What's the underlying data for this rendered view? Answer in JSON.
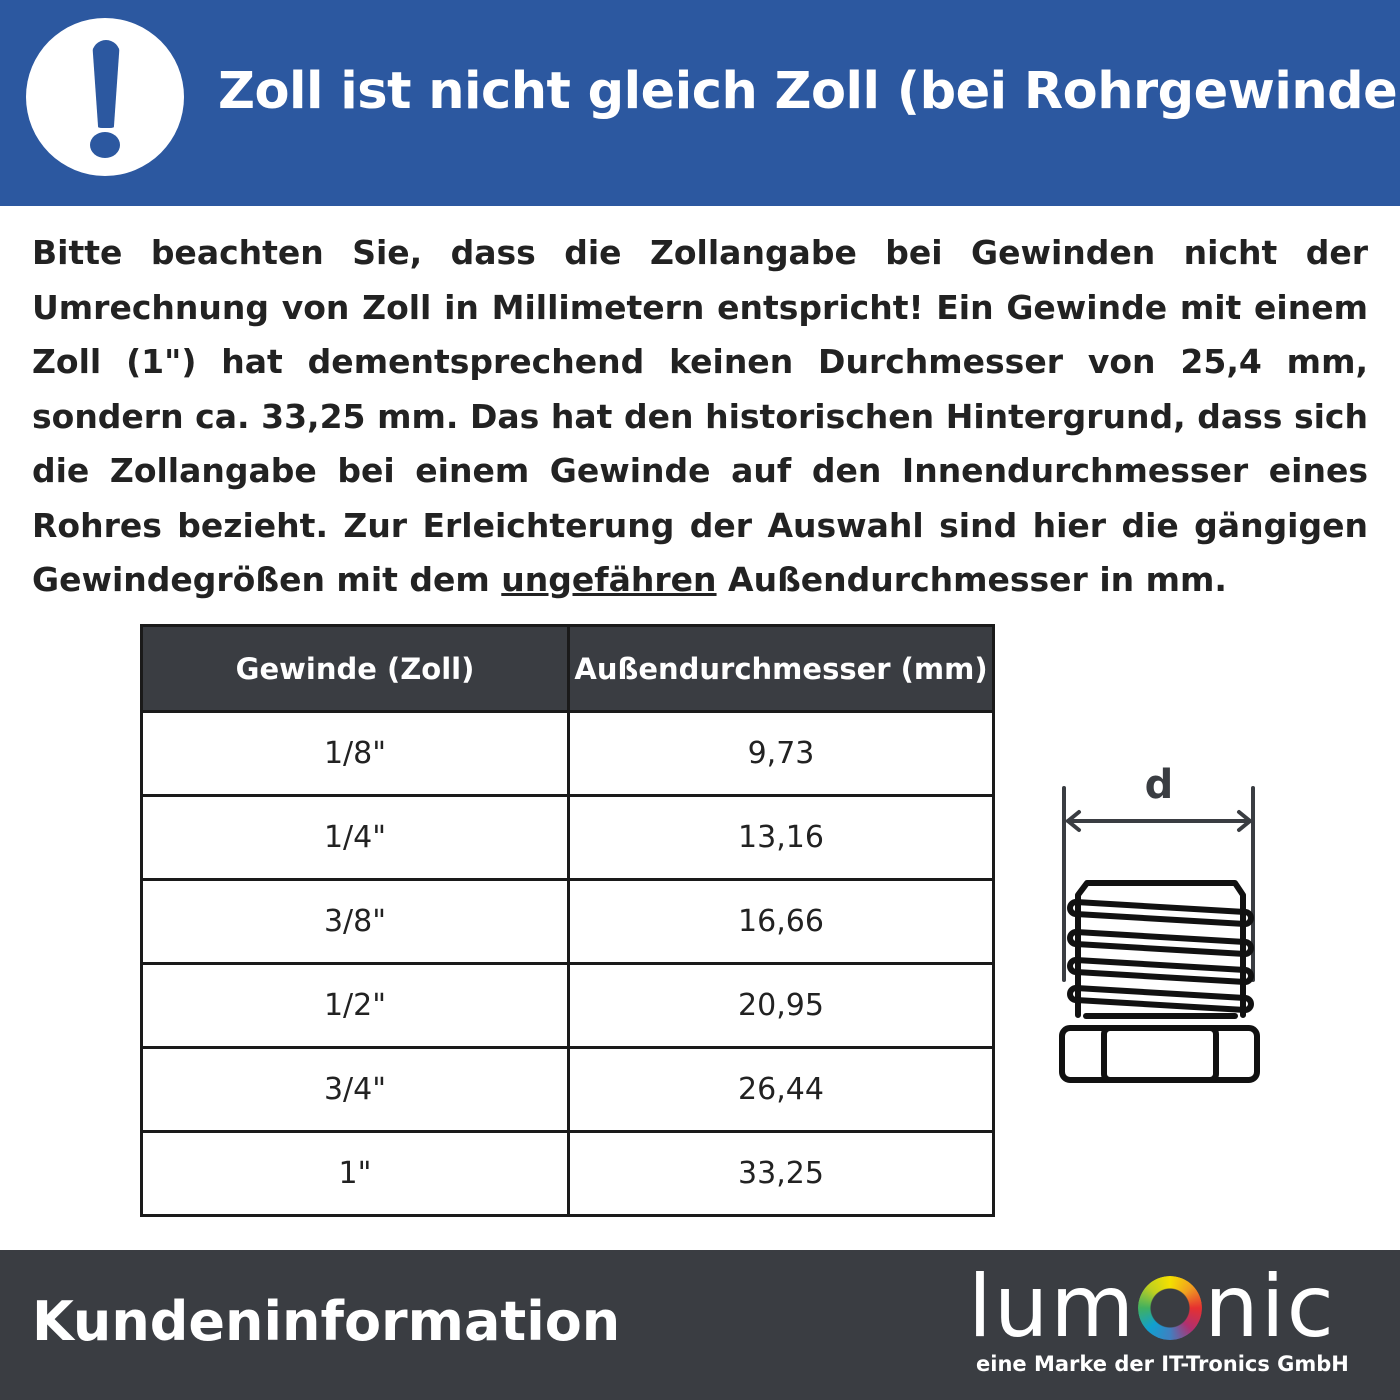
{
  "header": {
    "title": "Zoll ist nicht gleich Zoll (bei Rohrgewinde)",
    "icon": "exclamation-icon",
    "color": "#2c58a0"
  },
  "body": {
    "text_before": "Bitte beachten Sie, dass die Zollangabe bei Gewinden nicht der Umrechnung von Zoll in Millimetern entspricht! Ein Gewinde mit einem Zoll (1\") hat dementsprechend keinen Durchmesser von 25,4 mm, sondern ca. 33,25 mm. Das hat den historischen Hintergrund, dass sich die Zollangabe bei einem Gewinde auf den Innendurchmesser eines Rohres bezieht. Zur Erleichterung der Auswahl sind hier die gängigen Gewindegrößen mit dem ",
    "underlined": "ungefähren",
    "text_after": " Außendurchmesser in mm."
  },
  "table": {
    "headers": [
      "Gewinde (Zoll)",
      "Außendurchmesser (mm)"
    ],
    "rows": [
      [
        "1/8\"",
        "9,73"
      ],
      [
        "1/4\"",
        "13,16"
      ],
      [
        "3/8\"",
        "16,66"
      ],
      [
        "1/2\"",
        "20,95"
      ],
      [
        "3/4\"",
        "26,44"
      ],
      [
        "1\"",
        "33,25"
      ]
    ]
  },
  "diagram": {
    "label": "d"
  },
  "footer": {
    "title": "Kundeninformation",
    "logo_text": "lumOnic",
    "logo_sub": "eine Marke der IT-Tronics GmbH",
    "color": "#3a3d42"
  }
}
